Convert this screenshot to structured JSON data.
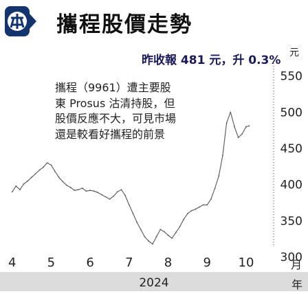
{
  "header": {
    "title": "攜程股價走勢"
  },
  "chart_data": {
    "type": "line",
    "title": "攜程股價走勢",
    "headline": "昨收報 481 元，升 0.3%",
    "annotation_lines": [
      "攜程（9961）遭主要股",
      "東 Prosus 沽清持股，但",
      "股價反應不大，可見市場",
      "還是較看好攜程的前景"
    ],
    "y_unit": "元",
    "x_unit": "月",
    "year_label": "2024",
    "year_unit": "年",
    "ylim": [
      285,
      560
    ],
    "yticks": [
      300,
      350,
      400,
      450,
      500,
      550
    ],
    "xlim": [
      3.9,
      10.6
    ],
    "xticks": [
      {
        "label": "4",
        "pos": 4
      },
      {
        "label": "5",
        "pos": 5
      },
      {
        "label": "6",
        "pos": 6
      },
      {
        "label": "7",
        "pos": 7
      },
      {
        "label": "8",
        "pos": 8
      },
      {
        "label": "9",
        "pos": 9
      },
      {
        "label": "10",
        "pos": 10
      }
    ],
    "grid": false,
    "series": [
      {
        "color": "#555555",
        "points": [
          [
            4.0,
            390
          ],
          [
            4.1,
            398
          ],
          [
            4.2,
            393
          ],
          [
            4.3,
            401
          ],
          [
            4.4,
            405
          ],
          [
            4.5,
            410
          ],
          [
            4.6,
            415
          ],
          [
            4.7,
            420
          ],
          [
            4.8,
            424
          ],
          [
            4.9,
            430
          ],
          [
            5.0,
            427
          ],
          [
            5.1,
            418
          ],
          [
            5.2,
            410
          ],
          [
            5.3,
            404
          ],
          [
            5.4,
            399
          ],
          [
            5.5,
            396
          ],
          [
            5.6,
            392
          ],
          [
            5.7,
            393
          ],
          [
            5.8,
            395
          ],
          [
            5.9,
            391
          ],
          [
            6.0,
            392
          ],
          [
            6.1,
            391
          ],
          [
            6.2,
            389
          ],
          [
            6.3,
            386
          ],
          [
            6.4,
            383
          ],
          [
            6.5,
            380
          ],
          [
            6.6,
            384
          ],
          [
            6.7,
            390
          ],
          [
            6.8,
            393
          ],
          [
            6.9,
            385
          ],
          [
            7.0,
            372
          ],
          [
            7.1,
            360
          ],
          [
            7.2,
            348
          ],
          [
            7.3,
            338
          ],
          [
            7.4,
            328
          ],
          [
            7.5,
            322
          ],
          [
            7.6,
            318
          ],
          [
            7.7,
            328
          ],
          [
            7.8,
            338
          ],
          [
            7.9,
            335
          ],
          [
            8.0,
            330
          ],
          [
            8.1,
            326
          ],
          [
            8.2,
            334
          ],
          [
            8.3,
            342
          ],
          [
            8.4,
            352
          ],
          [
            8.5,
            360
          ],
          [
            8.6,
            364
          ],
          [
            8.7,
            366
          ],
          [
            8.8,
            369
          ],
          [
            8.9,
            372
          ],
          [
            9.0,
            372
          ],
          [
            9.1,
            380
          ],
          [
            9.2,
            395
          ],
          [
            9.3,
            412
          ],
          [
            9.4,
            440
          ],
          [
            9.5,
            485
          ],
          [
            9.6,
            500
          ],
          [
            9.7,
            480
          ],
          [
            9.8,
            465
          ],
          [
            9.9,
            470
          ],
          [
            10.0,
            480
          ],
          [
            10.08,
            481
          ]
        ]
      }
    ]
  }
}
